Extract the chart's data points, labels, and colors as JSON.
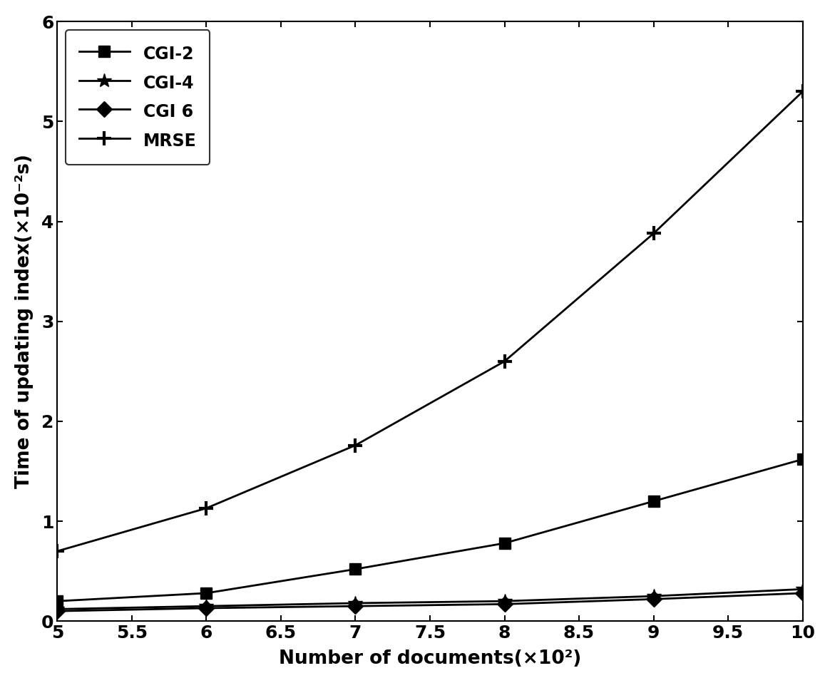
{
  "x": [
    5,
    6,
    7,
    8,
    9,
    10
  ],
  "CGI2": [
    0.2,
    0.28,
    0.52,
    0.78,
    1.2,
    1.62
  ],
  "CGI4": [
    0.12,
    0.15,
    0.18,
    0.2,
    0.25,
    0.32
  ],
  "CGI6": [
    0.1,
    0.13,
    0.15,
    0.17,
    0.22,
    0.28
  ],
  "MRSE": [
    0.7,
    1.13,
    1.76,
    2.6,
    3.88,
    5.3
  ],
  "xlabel": "Number of documents(×10²)",
  "ylabel": "Time of updating index(×10⁻²s)",
  "xlim": [
    5,
    10
  ],
  "ylim": [
    0,
    6
  ],
  "xticks": [
    5,
    5.5,
    6,
    6.5,
    7,
    7.5,
    8,
    8.5,
    9,
    9.5,
    10
  ],
  "yticks": [
    0,
    1,
    2,
    3,
    4,
    5,
    6
  ],
  "legend_labels": [
    "CGI-2",
    "CGI-4",
    "CGI 6",
    "MRSE"
  ],
  "line_color": "#000000",
  "bg_color": "#ffffff"
}
